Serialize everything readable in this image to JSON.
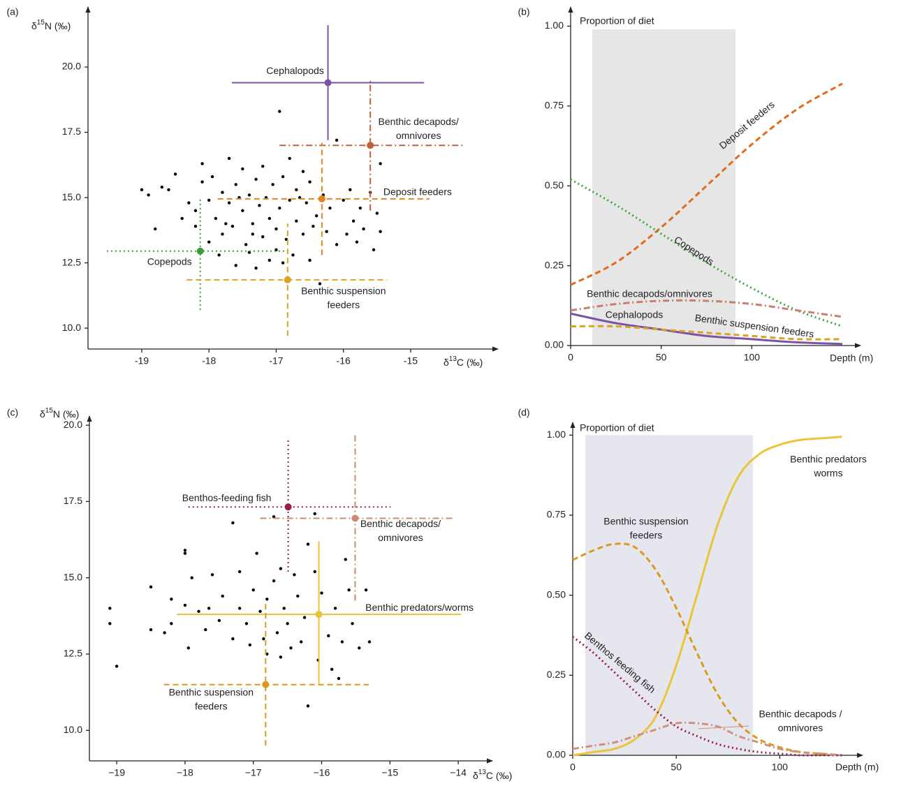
{
  "chart_data": [
    {
      "type": "scatter",
      "panel": "(a)",
      "y_label": {
        "symbol": "δ",
        "sup": "15",
        "unit": "N (‰)"
      },
      "x_label": {
        "symbol": "δ",
        "sup": "13",
        "unit": "C (‰)"
      },
      "xlim": [
        -19.8,
        -13.7
      ],
      "ylim": [
        9.2,
        22.3
      ],
      "xticks": [
        -19,
        -18,
        -17,
        -16,
        -15
      ],
      "yticks": [
        {
          "value": 10,
          "label": "10.0"
        },
        12.5,
        {
          "value": 15,
          "label": "15.0"
        },
        17.5,
        {
          "value": 20,
          "label": "20.0"
        }
      ],
      "point_color": "#000000",
      "x": [
        -19.0,
        -18.9,
        -18.8,
        -18.7,
        -18.6,
        -18.5,
        -18.4,
        -18.3,
        -18.2,
        -18.2,
        -18.1,
        -18.1,
        -18.0,
        -18.0,
        -17.95,
        -17.9,
        -17.85,
        -17.8,
        -17.8,
        -17.7,
        -17.7,
        -17.65,
        -17.6,
        -17.6,
        -17.5,
        -17.5,
        -17.45,
        -17.4,
        -17.4,
        -17.35,
        -17.3,
        -17.3,
        -17.25,
        -17.2,
        -17.2,
        -17.15,
        -17.1,
        -17.1,
        -17.05,
        -17.0,
        -16.95,
        -16.95,
        -16.9,
        -16.9,
        -16.85,
        -16.8,
        -16.8,
        -16.75,
        -16.7,
        -16.7,
        -16.6,
        -16.6,
        -16.55,
        -16.5,
        -16.5,
        -16.45,
        -16.4,
        -16.35,
        -16.3,
        -16.25,
        -16.2,
        -16.1,
        -16.1,
        -16.0,
        -15.95,
        -15.9,
        -15.85,
        -15.8,
        -15.75,
        -15.7,
        -15.6,
        -15.55,
        -15.5,
        -15.45,
        -15.45,
        -17.75,
        -17.55,
        -17.0,
        -16.65,
        -17.35
      ],
      "y": [
        15.3,
        15.1,
        13.8,
        15.4,
        15.3,
        15.9,
        14.2,
        14.8,
        14.5,
        13.9,
        15.6,
        16.3,
        14.9,
        13.3,
        15.8,
        14.2,
        12.8,
        15.2,
        13.6,
        16.5,
        14.8,
        13.9,
        15.5,
        12.4,
        14.5,
        16.1,
        13.2,
        15.1,
        12.9,
        14.0,
        15.7,
        12.3,
        14.7,
        13.5,
        16.2,
        15.0,
        12.6,
        14.2,
        15.5,
        13.8,
        18.3,
        14.6,
        12.5,
        15.8,
        13.4,
        14.9,
        16.5,
        12.8,
        14.1,
        15.3,
        13.6,
        16.0,
        14.8,
        12.6,
        15.6,
        13.9,
        14.3,
        11.7,
        15.1,
        13.7,
        14.6,
        17.2,
        13.2,
        14.9,
        13.6,
        15.3,
        14.1,
        13.3,
        14.6,
        13.8,
        15.2,
        13.0,
        14.4,
        16.3,
        13.7,
        14.0,
        15.0,
        13.0,
        15.0,
        13.6
      ],
      "groups": [
        {
          "name": [
            "Cephalopods"
          ],
          "color": "#7b52a6",
          "style": "solid",
          "x": -16.23,
          "y": 19.4,
          "xrange": [
            -17.66,
            -14.8
          ],
          "yrange": [
            17.2,
            21.6
          ]
        },
        {
          "name": [
            "Benthic decapods/",
            "omnivores"
          ],
          "color": "#c0603c",
          "style": "dashdot",
          "x": -15.6,
          "y": 17.0,
          "xrange": [
            -16.95,
            -14.2
          ],
          "yrange": [
            14.5,
            19.5
          ]
        },
        {
          "name": [
            "Deposit feeders"
          ],
          "color": "#e8821e",
          "style": "dashed",
          "x": -16.32,
          "y": 14.95,
          "xrange": [
            -17.87,
            -14.72
          ],
          "yrange": [
            12.8,
            17.1
          ]
        },
        {
          "name": [
            "Copepods"
          ],
          "color": "#3a9b3a",
          "style": "dotted",
          "x": -18.13,
          "y": 12.95,
          "xrange": [
            -19.52,
            -16.82
          ],
          "yrange": [
            10.7,
            15.0
          ]
        },
        {
          "name": [
            "Benthic suspension",
            "feeders"
          ],
          "color": "#d9a21f",
          "style": "dashed",
          "x": -16.83,
          "y": 11.85,
          "xrange": [
            -18.33,
            -15.35
          ],
          "yrange": [
            9.7,
            14.0
          ]
        }
      ]
    },
    {
      "type": "line",
      "panel": "(b)",
      "y_label": "Proportion of diet",
      "x_label": "Depth (m)",
      "xlim": [
        0,
        160
      ],
      "ylim": [
        0,
        1.06
      ],
      "xticks": [
        0,
        50,
        100
      ],
      "yticks": [
        {
          "value": 0,
          "label": "0.00"
        },
        {
          "value": 0.25,
          "label": "0.25"
        },
        {
          "value": 0.5,
          "label": "0.50"
        },
        {
          "value": 0.75,
          "label": "0.75"
        },
        {
          "value": 1,
          "label": "1.00"
        }
      ],
      "shaded": {
        "x": [
          12,
          91
        ],
        "y": [
          0,
          0.99
        ],
        "color": "#e6e6e6"
      },
      "x": [
        0,
        25,
        50,
        75,
        100,
        125,
        150
      ],
      "series": [
        {
          "name": [
            "Deposit feeders"
          ],
          "color": "#e06a1e",
          "style": "dashed",
          "values": [
            0.19,
            0.26,
            0.37,
            0.5,
            0.63,
            0.74,
            0.82
          ]
        },
        {
          "name": [
            "Copepods"
          ],
          "color": "#3aa83a",
          "style": "dotted",
          "values": [
            0.52,
            0.44,
            0.35,
            0.26,
            0.18,
            0.11,
            0.06
          ]
        },
        {
          "name": [
            "Benthic decapods/omnivores"
          ],
          "color": "#c97f6e",
          "style": "dashdot",
          "values": [
            0.11,
            0.13,
            0.14,
            0.14,
            0.13,
            0.11,
            0.09
          ]
        },
        {
          "name": [
            "Cephalopods"
          ],
          "color": "#7b52a6",
          "style": "solid",
          "values": [
            0.1,
            0.07,
            0.05,
            0.03,
            0.02,
            0.01,
            0.005
          ]
        },
        {
          "name": [
            "Benthic suspension feeders"
          ],
          "color": "#d9a21f",
          "style": "dashed",
          "values": [
            0.06,
            0.06,
            0.05,
            0.04,
            0.03,
            0.02,
            0.02
          ]
        }
      ]
    },
    {
      "type": "scatter",
      "panel": "(c)",
      "y_label": {
        "symbol": "δ",
        "sup": "15",
        "unit": "N (‰)"
      },
      "x_label": {
        "symbol": "δ",
        "sup": "13",
        "unit": "C (‰)"
      },
      "xlim": [
        -19.4,
        -13.5
      ],
      "ylim": [
        9,
        20.3
      ],
      "xticks": [
        {
          "value": -19,
          "label": "−19"
        },
        {
          "value": -18,
          "label": "−18"
        },
        {
          "value": -17,
          "label": "−17"
        },
        {
          "value": -16,
          "label": "−16"
        },
        {
          "value": -15,
          "label": "−15"
        },
        {
          "value": -14,
          "label": "−14"
        }
      ],
      "yticks": [
        {
          "value": 10,
          "label": "10.0"
        },
        12.5,
        {
          "value": 15,
          "label": "15.0"
        },
        17.5,
        {
          "value": 20,
          "label": "20.0"
        }
      ],
      "point_color": "#000000",
      "x": [
        -19.1,
        -19.1,
        -19.0,
        -18.5,
        -18.5,
        -18.3,
        -18.2,
        -18.2,
        -18.0,
        -18.0,
        -18.0,
        -17.95,
        -17.9,
        -17.8,
        -17.7,
        -17.65,
        -17.6,
        -17.5,
        -17.45,
        -17.3,
        -17.3,
        -17.2,
        -17.2,
        -17.1,
        -17.05,
        -17.0,
        -16.95,
        -16.9,
        -16.85,
        -16.8,
        -16.8,
        -16.7,
        -16.7,
        -16.65,
        -16.6,
        -16.55,
        -16.5,
        -16.45,
        -16.4,
        -16.35,
        -16.3,
        -16.25,
        -16.2,
        -16.2,
        -16.1,
        -16.1,
        -16.05,
        -16.0,
        -15.9,
        -15.85,
        -15.8,
        -15.75,
        -15.7,
        -15.65,
        -15.6,
        -15.55,
        -15.45,
        -15.3,
        -15.35,
        -16.6
      ],
      "y": [
        14.0,
        13.5,
        12.1,
        14.7,
        13.3,
        13.2,
        13.5,
        14.3,
        15.9,
        15.8,
        14.1,
        12.7,
        15.0,
        13.9,
        13.3,
        14.0,
        15.1,
        13.6,
        14.4,
        16.8,
        13.0,
        15.2,
        14.0,
        13.5,
        12.8,
        14.6,
        15.8,
        13.9,
        13.0,
        12.5,
        14.3,
        14.9,
        17.0,
        13.2,
        12.4,
        14.0,
        13.5,
        12.7,
        15.1,
        14.4,
        12.9,
        13.7,
        16.1,
        10.8,
        17.1,
        15.2,
        12.3,
        14.5,
        13.1,
        12.0,
        14.0,
        11.7,
        12.9,
        15.6,
        14.6,
        13.5,
        12.7,
        12.9,
        14.6,
        15.3
      ],
      "groups": [
        {
          "name": [
            "Benthos-feeding fish"
          ],
          "color": "#9b1b4b",
          "style": "dotted",
          "x": -16.49,
          "y": 17.32,
          "xrange": [
            -17.95,
            -14.99
          ],
          "yrange": [
            15.2,
            19.5
          ]
        },
        {
          "name": [
            "Benthic decapods/",
            "omnivores"
          ],
          "color": "#d08a70",
          "style": "dashdot",
          "x": -15.51,
          "y": 16.95,
          "xrange": [
            -16.9,
            -14.06
          ],
          "yrange": [
            14.25,
            19.7
          ]
        },
        {
          "name": [
            "Benthic predators/worms"
          ],
          "color": "#e8c435",
          "style": "solid",
          "x": -16.04,
          "y": 13.8,
          "xrange": [
            -18.12,
            -13.96
          ],
          "yrange": [
            11.5,
            16.2
          ]
        },
        {
          "name": [
            "Benthic suspension",
            "feeders"
          ],
          "color": "#d99a1f",
          "style": "dashed",
          "x": -16.82,
          "y": 11.5,
          "xrange": [
            -18.31,
            -15.31
          ],
          "yrange": [
            9.5,
            14.2
          ]
        }
      ]
    },
    {
      "type": "line",
      "panel": "(d)",
      "y_label": "Proportion of diet",
      "x_label": "Depth (m)",
      "xlim": [
        0,
        140
      ],
      "ylim": [
        0,
        1.04
      ],
      "xticks": [
        0,
        50,
        100
      ],
      "yticks": [
        {
          "value": 0,
          "label": "0.00"
        },
        {
          "value": 0.25,
          "label": "0.25"
        },
        {
          "value": 0.5,
          "label": "0.50"
        },
        {
          "value": 0.75,
          "label": "0.75"
        },
        {
          "value": 1,
          "label": "1.00"
        }
      ],
      "shaded": {
        "x": [
          6,
          87
        ],
        "y": [
          0,
          1
        ],
        "color": "#e6e6ee"
      },
      "x": [
        0,
        10,
        20,
        30,
        40,
        50,
        60,
        70,
        80,
        90,
        100,
        110,
        120,
        130
      ],
      "series": [
        {
          "name": [
            "Benthic predators",
            "worms"
          ],
          "color": "#eac43a",
          "style": "solid",
          "values": [
            0.0,
            0.01,
            0.02,
            0.05,
            0.12,
            0.28,
            0.5,
            0.72,
            0.87,
            0.94,
            0.97,
            0.985,
            0.99,
            0.995
          ]
        },
        {
          "name": [
            "Benthic suspension",
            "feeders"
          ],
          "color": "#d99a1f",
          "style": "dashed",
          "values": [
            0.61,
            0.64,
            0.66,
            0.65,
            0.58,
            0.46,
            0.32,
            0.19,
            0.1,
            0.05,
            0.025,
            0.01,
            0.005,
            0.0
          ]
        },
        {
          "name": [
            "Benthos feeding fish"
          ],
          "color": "#9b1b4b",
          "style": "dotted",
          "values": [
            0.37,
            0.32,
            0.26,
            0.2,
            0.14,
            0.09,
            0.06,
            0.035,
            0.02,
            0.01,
            0.005,
            0.0,
            0.0,
            0.0
          ]
        },
        {
          "name": [
            "Benthic decapods /",
            "omnivores"
          ],
          "color": "#d09080",
          "style": "dashdot",
          "values": [
            0.02,
            0.03,
            0.04,
            0.06,
            0.08,
            0.1,
            0.1,
            0.09,
            0.06,
            0.04,
            0.02,
            0.01,
            0.005,
            0.0
          ]
        }
      ]
    }
  ]
}
